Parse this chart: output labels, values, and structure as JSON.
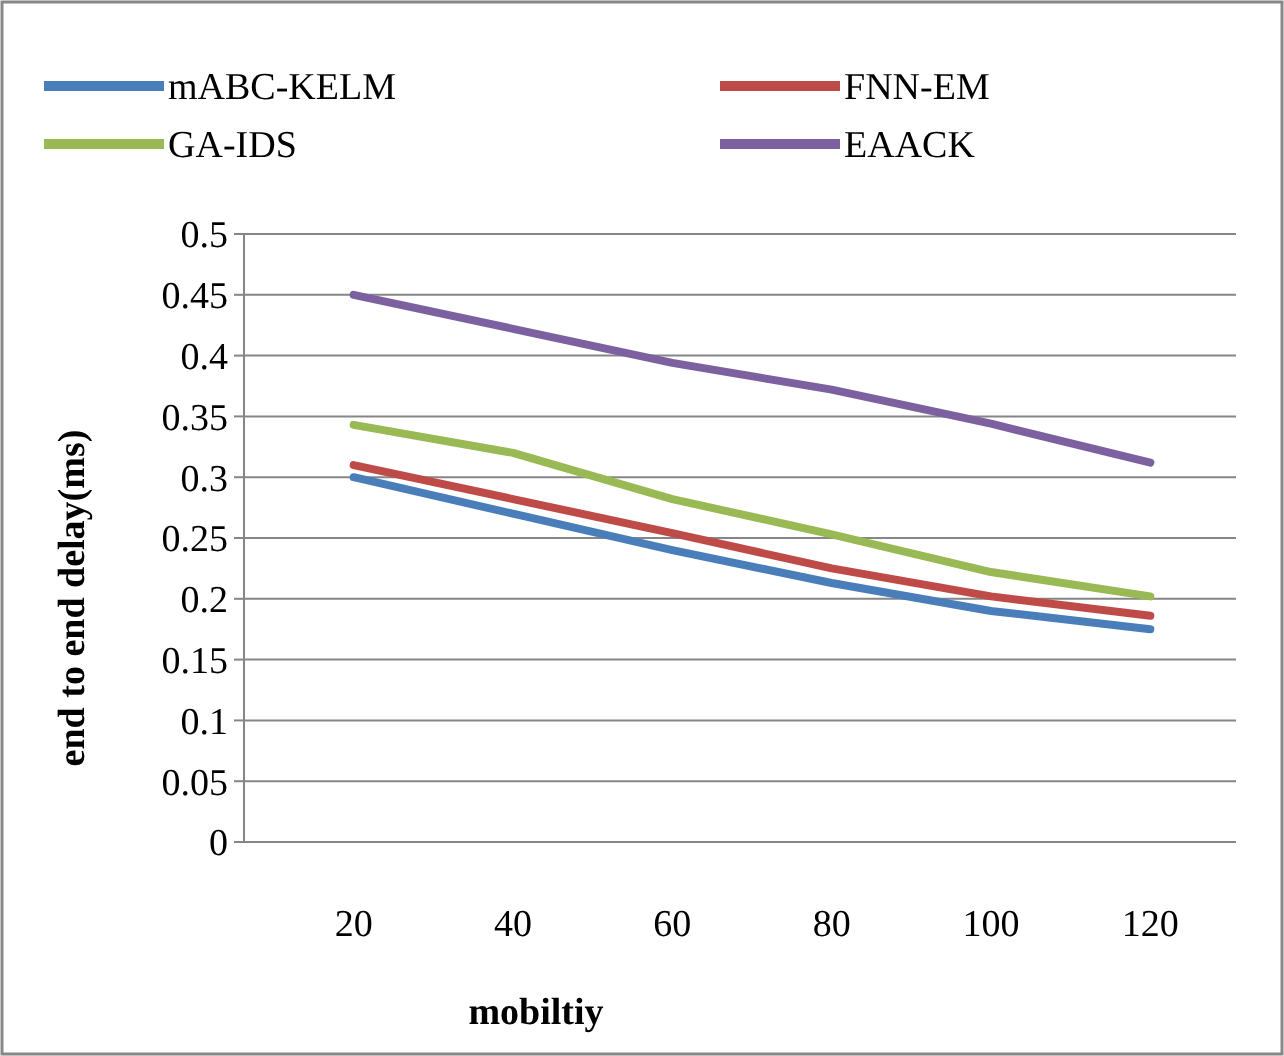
{
  "chart_data": {
    "type": "line",
    "xlabel": "mobiltiy",
    "ylabel": "end to end delay(ms)",
    "categories": [
      "20",
      "40",
      "60",
      "80",
      "100",
      "120"
    ],
    "ylim": [
      0,
      0.5
    ],
    "yticks": [
      0,
      0.05,
      0.1,
      0.15,
      0.2,
      0.25,
      0.3,
      0.35,
      0.4,
      0.45,
      0.5
    ],
    "grid": "y",
    "legend": "top",
    "marker": "none",
    "series": [
      {
        "name": "mABC-KELM",
        "color": "#4a7ebb",
        "values": [
          0.3,
          0.27,
          0.24,
          0.213,
          0.19,
          0.175
        ]
      },
      {
        "name": "FNN-EM",
        "color": "#be4b48",
        "values": [
          0.31,
          0.282,
          0.254,
          0.225,
          0.202,
          0.186
        ]
      },
      {
        "name": "GA-IDS",
        "color": "#98b954",
        "values": [
          0.343,
          0.32,
          0.282,
          0.253,
          0.222,
          0.202
        ]
      },
      {
        "name": "EAACK",
        "color": "#7d60a0",
        "values": [
          0.45,
          0.422,
          0.394,
          0.372,
          0.344,
          0.312
        ]
      }
    ]
  }
}
